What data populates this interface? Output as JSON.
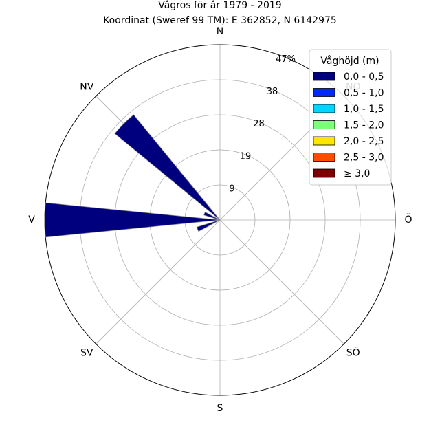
{
  "chart_data": {
    "type": "wind-rose",
    "title": "Vågros för år 1979 - 2019",
    "subtitle": "Koordinat (Sweref 99 TM): E 362852, N 6142975",
    "directions": [
      "N",
      "NO",
      "Ö",
      "SÖ",
      "S",
      "SV",
      "V",
      "NV"
    ],
    "radial_ticks": [
      "9",
      "19",
      "28",
      "38",
      "47%"
    ],
    "radial_tick_values": [
      9.4,
      18.8,
      28.2,
      37.6,
      47
    ],
    "r_max": 47,
    "legend_title": "Våghöjd (m)",
    "legend_position": "top-right",
    "grid": true,
    "bins": [
      {
        "label": "0,0 - 0,5",
        "color": "#00007f"
      },
      {
        "label": "0,5 - 1,0",
        "color": "#0028ff"
      },
      {
        "label": "1,0 - 1,5",
        "color": "#00d4ff"
      },
      {
        "label": "1,5 - 2,0",
        "color": "#7cff79"
      },
      {
        "label": "2,0 - 2,5",
        "color": "#ffe500"
      },
      {
        "label": "2,5 - 3,0",
        "color": "#ff4a00"
      },
      {
        "label": "≥ 3,0",
        "color": "#7f0000"
      }
    ],
    "sectors": [
      {
        "dir_deg": 247.5,
        "values": [
          6.5,
          0,
          0,
          0,
          0,
          0,
          0
        ]
      },
      {
        "dir_deg": 270,
        "values": [
          47,
          0,
          0,
          0,
          0,
          0,
          0
        ]
      },
      {
        "dir_deg": 292.5,
        "values": [
          4.5,
          0,
          0,
          0,
          0,
          0,
          0
        ]
      },
      {
        "dir_deg": 315,
        "values": [
          36.5,
          0,
          0,
          0,
          0,
          0,
          0
        ]
      }
    ],
    "sector_width_deg": 11.25
  }
}
